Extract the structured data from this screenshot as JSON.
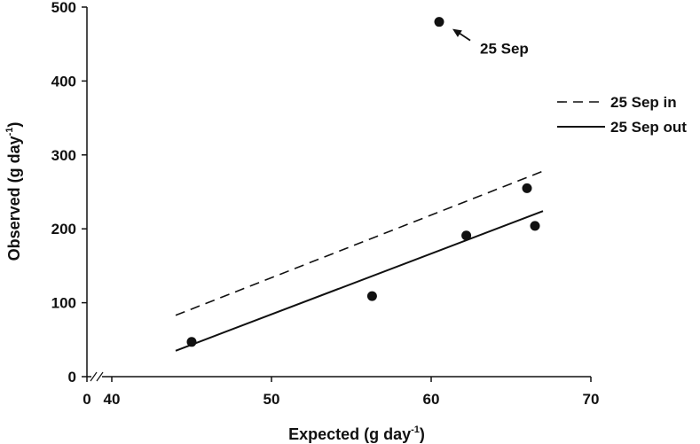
{
  "chart_data": {
    "type": "scatter",
    "title": "",
    "xlabel": "Expected (g day",
    "xlabel_sup": "-1",
    "xlabel_close": ")",
    "ylabel": "Observed (g day",
    "ylabel_sup": "-1",
    "ylabel_close": ")",
    "xlim": [
      0,
      70
    ],
    "ylim": [
      0,
      500
    ],
    "x_axis_break": true,
    "x_break_range": [
      0,
      40
    ],
    "x_ticks": [
      0,
      40,
      50,
      60,
      70
    ],
    "y_ticks": [
      0,
      100,
      200,
      300,
      400,
      500
    ],
    "grid": false,
    "points": [
      {
        "x": 45.0,
        "y": 47
      },
      {
        "x": 56.3,
        "y": 109
      },
      {
        "x": 60.5,
        "y": 480
      },
      {
        "x": 62.2,
        "y": 191
      },
      {
        "x": 66.0,
        "y": 255
      },
      {
        "x": 66.5,
        "y": 204
      }
    ],
    "lines": [
      {
        "name": "25 Sep in",
        "style": "dashed",
        "x": [
          44,
          67
        ],
        "y": [
          83,
          278
        ]
      },
      {
        "name": "25 Sep out",
        "style": "solid",
        "x": [
          44,
          67
        ],
        "y": [
          35,
          224
        ]
      }
    ],
    "legend_placement": "right",
    "annotation": {
      "text": "25 Sep",
      "target": {
        "x": 60.5,
        "y": 480
      }
    }
  }
}
